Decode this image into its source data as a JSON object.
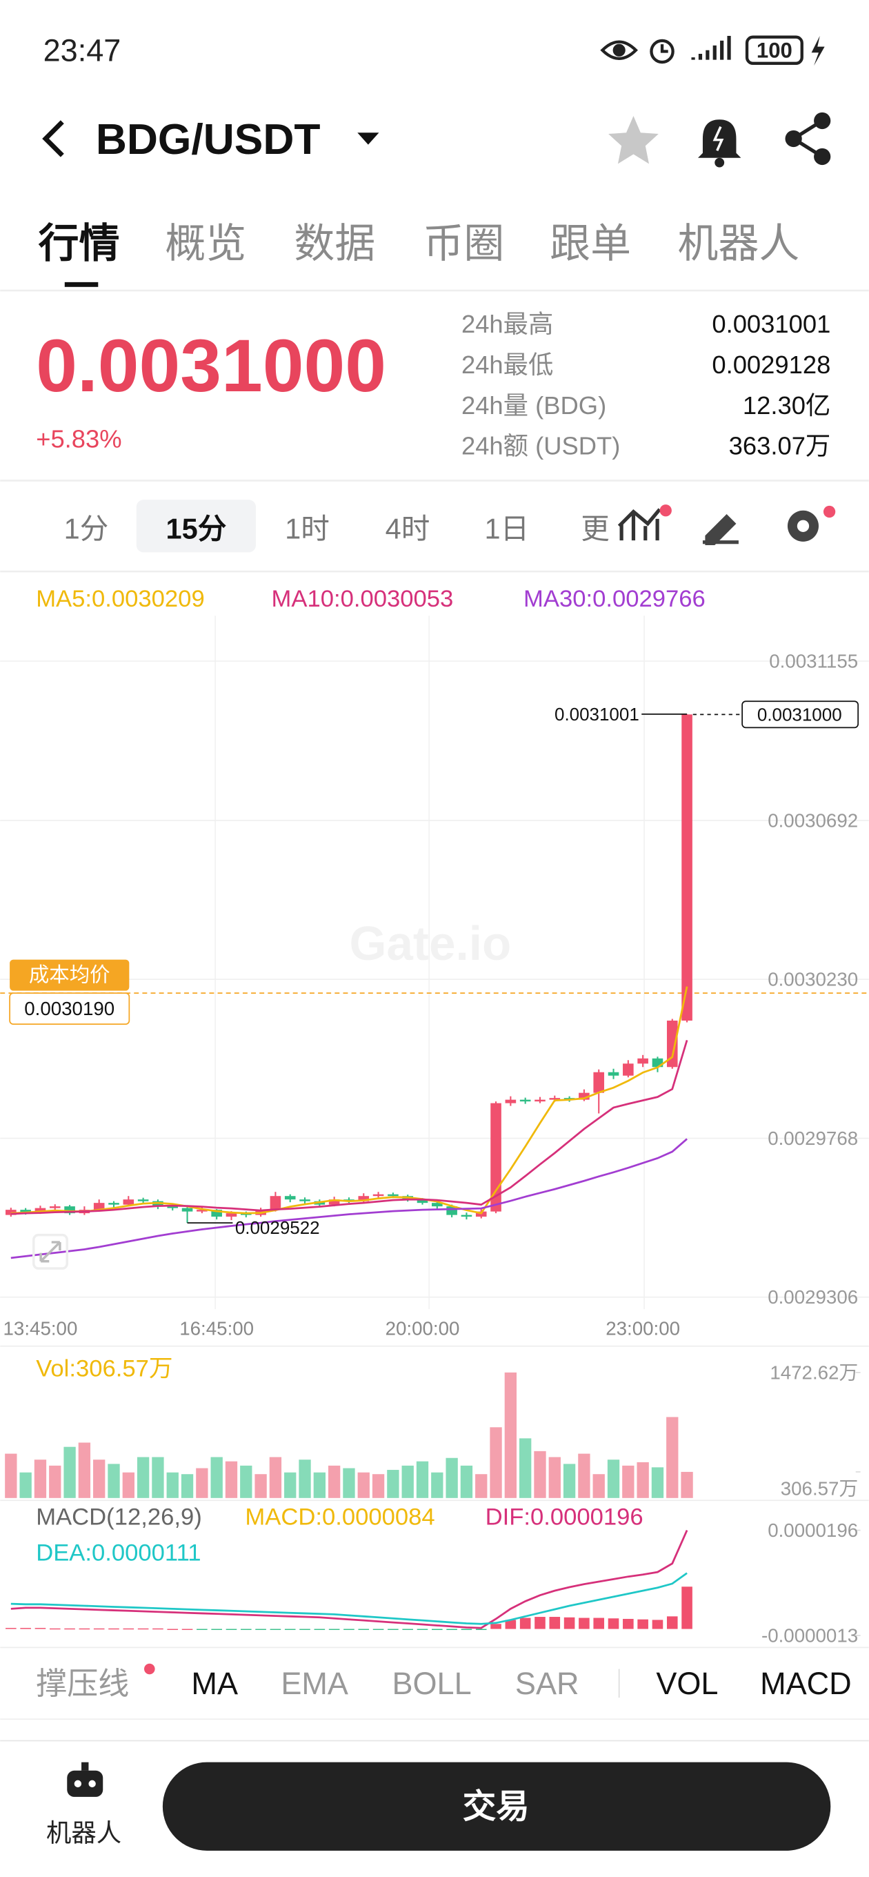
{
  "status_bar": {
    "time": "23:47",
    "battery": "100"
  },
  "header": {
    "pair": "BDG/USDT"
  },
  "tabs": [
    "行情",
    "概览",
    "数据",
    "币圈",
    "跟单",
    "机器人"
  ],
  "price": {
    "last": "0.0031000",
    "change": "+5.83%"
  },
  "stats": [
    {
      "label": "24h最高",
      "value": "0.0031001"
    },
    {
      "label": "24h最低",
      "value": "0.0029128"
    },
    {
      "label": "24h量 (BDG)",
      "value": "12.30亿"
    },
    {
      "label": "24h额 (USDT)",
      "value": "363.07万"
    }
  ],
  "intervals": [
    "1分",
    "15分",
    "1时",
    "4时",
    "1日",
    "更"
  ],
  "watermark": "Gate.io",
  "chart_data": [
    {
      "type": "candlestick",
      "up_color": "#f0506e",
      "down_color": "#2ebd85",
      "categories": [
        null,
        null,
        "13:45:00",
        null,
        null,
        null,
        null,
        null,
        null,
        null,
        null,
        null,
        null,
        null,
        "16:45:00",
        null,
        null,
        null,
        null,
        null,
        null,
        null,
        null,
        null,
        null,
        null,
        null,
        null,
        "20:00:00",
        null,
        null,
        null,
        null,
        null,
        null,
        null,
        null,
        null,
        null,
        null,
        null,
        null,
        null,
        "23:00:00",
        null,
        null,
        null
      ],
      "open": [
        0.0029545,
        0.002956,
        0.0029552,
        0.0029565,
        0.002957,
        0.002955,
        0.002956,
        0.002958,
        0.0029575,
        0.002959,
        0.0029585,
        0.002957,
        0.0029565,
        0.0029555,
        0.002956,
        0.002954,
        0.002955,
        0.0029545,
        0.002956,
        0.00296,
        0.002959,
        0.0029585,
        0.0029575,
        0.002959,
        0.0029585,
        0.00296,
        0.0029605,
        0.00296,
        0.002959,
        0.002958,
        0.002957,
        0.0029545,
        0.002954,
        0.0029555,
        0.002987,
        0.002988,
        0.0029875,
        0.002988,
        0.0029885,
        0.002988,
        0.00299,
        0.002996,
        0.002995,
        0.0029985,
        0.003,
        0.0029975,
        0.003011
      ],
      "high": [
        0.0029566,
        0.0029565,
        0.0029572,
        0.0029576,
        0.0029574,
        0.002957,
        0.002959,
        0.0029585,
        0.00296,
        0.0029595,
        0.002959,
        0.0029575,
        0.002957,
        0.0029568,
        0.0029562,
        0.0029556,
        0.0029555,
        0.0029566,
        0.0029612,
        0.0029605,
        0.0029596,
        0.002959,
        0.0029598,
        0.0029596,
        0.0029608,
        0.0029612,
        0.002961,
        0.0029604,
        0.0029594,
        0.0029585,
        0.0029575,
        0.0029552,
        0.0029562,
        0.0029875,
        0.002989,
        0.0029886,
        0.0029888,
        0.0029892,
        0.002989,
        0.002991,
        0.0029968,
        0.002997,
        0.0029995,
        0.003001,
        0.0030005,
        0.0030115,
        0.0031001
      ],
      "low": [
        0.002954,
        0.0029546,
        0.0029548,
        0.002956,
        0.0029545,
        0.0029545,
        0.0029555,
        0.0029565,
        0.002957,
        0.0029578,
        0.0029562,
        0.0029558,
        0.0029522,
        0.002955,
        0.0029532,
        0.002953,
        0.0029538,
        0.002954,
        0.0029555,
        0.0029582,
        0.0029578,
        0.0029568,
        0.002957,
        0.002958,
        0.002958,
        0.0029595,
        0.0029594,
        0.0029584,
        0.0029575,
        0.0029562,
        0.0029538,
        0.0029532,
        0.0029535,
        0.002955,
        0.0029862,
        0.0029868,
        0.002987,
        0.0029874,
        0.0029874,
        0.0029876,
        0.002984,
        0.002994,
        0.0029945,
        0.0029975,
        0.002996,
        0.002997,
        0.0030105
      ],
      "close": [
        0.002956,
        0.0029552,
        0.0029565,
        0.002957,
        0.002955,
        0.002956,
        0.002958,
        0.0029575,
        0.002959,
        0.0029585,
        0.002957,
        0.0029565,
        0.0029555,
        0.002956,
        0.002954,
        0.002955,
        0.0029545,
        0.002956,
        0.00296,
        0.002959,
        0.0029585,
        0.0029575,
        0.002959,
        0.0029585,
        0.00296,
        0.0029605,
        0.00296,
        0.002959,
        0.002958,
        0.002957,
        0.0029545,
        0.002954,
        0.0029555,
        0.002987,
        0.002988,
        0.0029875,
        0.002988,
        0.0029885,
        0.002988,
        0.00299,
        0.002996,
        0.002995,
        0.0029985,
        0.003,
        0.0029975,
        0.003011,
        0.0031
      ],
      "series": [
        {
          "name": "MA5:0.0030209",
          "color": "#f0b90b",
          "values": [
            0.002955,
            0.0029552,
            0.0029555,
            0.0029558,
            0.0029556,
            0.0029555,
            0.002956,
            0.0029565,
            0.0029572,
            0.0029578,
            0.002958,
            0.0029577,
            0.002957,
            0.0029562,
            0.0029556,
            0.0029552,
            0.002955,
            0.0029551,
            0.0029559,
            0.0029569,
            0.0029576,
            0.0029582,
            0.0029588,
            0.0029585,
            0.0029587,
            0.0029593,
            0.0029597,
            0.0029596,
            0.0029591,
            0.0029584,
            0.0029571,
            0.0029559,
            0.002955,
            0.0029616,
            0.0029678,
            0.0029744,
            0.0029812,
            0.0029878,
            0.002988,
            0.0029884,
            0.0029901,
            0.0029915,
            0.0029935,
            0.0029959,
            0.0029974,
            0.0030004,
            0.0030209
          ]
        },
        {
          "name": "MA10:0.0030053",
          "color": "#d6307a",
          "values": [
            0.0029548,
            0.002955,
            0.0029551,
            0.0029553,
            0.0029554,
            0.0029555,
            0.0029557,
            0.002956,
            0.0029564,
            0.0029568,
            0.0029571,
            0.0029572,
            0.0029571,
            0.0029569,
            0.0029566,
            0.0029564,
            0.0029561,
            0.0029558,
            0.0029561,
            0.0029563,
            0.0029566,
            0.0029569,
            0.0029573,
            0.0029577,
            0.002958,
            0.0029584,
            0.0029588,
            0.002959,
            0.002959,
            0.0029588,
            0.0029584,
            0.002958,
            0.0029575,
            0.00296,
            0.0029625,
            0.0029658,
            0.0029692,
            0.0029725,
            0.002976,
            0.0029795,
            0.0029826,
            0.0029857,
            0.0029868,
            0.0029878,
            0.0029888,
            0.0029911,
            0.0030053
          ]
        },
        {
          "name": "MA30:0.0029766",
          "color": "#a23dd1",
          "values": [
            0.002942,
            0.0029425,
            0.002943,
            0.0029435,
            0.002944,
            0.0029445,
            0.0029452,
            0.002946,
            0.0029468,
            0.0029476,
            0.0029484,
            0.0029491,
            0.0029497,
            0.0029503,
            0.0029508,
            0.0029513,
            0.0029518,
            0.0029522,
            0.0029527,
            0.0029531,
            0.0029535,
            0.0029539,
            0.0029543,
            0.0029547,
            0.002955,
            0.0029553,
            0.0029556,
            0.0029558,
            0.002956,
            0.0029561,
            0.0029562,
            0.0029563,
            0.0029564,
            0.0029575,
            0.0029586,
            0.0029598,
            0.0029609,
            0.002962,
            0.0029632,
            0.0029644,
            0.0029657,
            0.0029669,
            0.0029682,
            0.0029696,
            0.002971,
            0.0029729,
            0.0029766
          ]
        }
      ],
      "ylim": [
        0.0029306,
        0.0031155
      ],
      "yticks": [
        0.0031155,
        0.0030692,
        {
          "value": 0.003023,
          "label": "0.0030230"
        },
        0.0029768,
        0.0029306
      ],
      "grid": true,
      "cost_label": "成本均价",
      "cost_price": {
        "value": 0.003019,
        "label": "0.0030190"
      },
      "high_mark": 0.0031001,
      "low_mark": 0.0029522,
      "current_price": {
        "value": 0.0031,
        "label": "0.0031000"
      }
    },
    {
      "type": "bar",
      "title": "Vol:306.57万",
      "values": [
        520,
        300,
        450,
        380,
        600,
        650,
        450,
        400,
        300,
        480,
        480,
        300,
        280,
        350,
        480,
        430,
        380,
        280,
        480,
        300,
        450,
        300,
        380,
        350,
        300,
        280,
        330,
        380,
        430,
        300,
        470,
        380,
        280,
        830,
        1472.62,
        700,
        550,
        480,
        400,
        520,
        280,
        450,
        380,
        420,
        360,
        950,
        306.57
      ],
      "ylim": [
        0,
        1472.62
      ],
      "yticks": [
        {
          "value": 1472.62,
          "label": "1472.62万"
        },
        {
          "value": 306.57,
          "label": "306.57万"
        }
      ]
    },
    {
      "type": "macd",
      "title": "MACD(12,26,9)",
      "series": [
        {
          "name": "MACD:0.0000084",
          "color": "#f0b90b",
          "values": [
            2e-07,
            2e-07,
            2e-07,
            1e-07,
            1e-07,
            1e-07,
            1e-07,
            1e-07,
            1e-07,
            1e-07,
            1e-07,
            0,
            0,
            -1e-07,
            -1e-07,
            -1e-07,
            -1e-07,
            -1e-07,
            -1e-07,
            -1e-07,
            -1e-07,
            -1e-07,
            -1e-07,
            -1e-07,
            -1e-07,
            -1e-07,
            -1e-07,
            -1e-07,
            -1e-07,
            -2e-07,
            -2e-07,
            -2e-07,
            -2e-07,
            1e-06,
            1.8e-06,
            2.2e-06,
            2.4e-06,
            2.4e-06,
            2.3e-06,
            2.2e-06,
            2.2e-06,
            2.1e-06,
            2e-06,
            1.9e-06,
            1.8e-06,
            2.5e-06,
            8.4e-06
          ]
        },
        {
          "name": "DIF:0.0000196",
          "color": "#d6307a",
          "values": [
            4e-06,
            4.2e-06,
            4.2e-06,
            4.1e-06,
            4e-06,
            3.9e-06,
            3.8e-06,
            3.7e-06,
            3.6e-06,
            3.5e-06,
            3.4e-06,
            3.3e-06,
            3.2e-06,
            3.1e-06,
            3e-06,
            2.9e-06,
            2.8e-06,
            2.7e-06,
            2.6e-06,
            2.5e-06,
            2.4e-06,
            2.3e-06,
            2.1e-06,
            1.9e-06,
            1.7e-06,
            1.5e-06,
            1.3e-06,
            1.1e-06,
            9e-07,
            7e-07,
            5e-07,
            3e-07,
            2e-07,
            2e-06,
            4e-06,
            5.5e-06,
            6.7e-06,
            7.6e-06,
            8.3e-06,
            8.9e-06,
            9.4e-06,
            9.9e-06,
            1.04e-05,
            1.08e-05,
            1.13e-05,
            1.3e-05,
            1.96e-05
          ]
        },
        {
          "name": "DEA:0.0000111",
          "color": "#1fc7c7",
          "values": [
            5e-06,
            4.9e-06,
            4.9e-06,
            4.8e-06,
            4.7e-06,
            4.6e-06,
            4.5e-06,
            4.4e-06,
            4.3e-06,
            4.2e-06,
            4.1e-06,
            4e-06,
            3.9e-06,
            3.8e-06,
            3.7e-06,
            3.6e-06,
            3.5e-06,
            3.4e-06,
            3.3e-06,
            3.2e-06,
            3.1e-06,
            3e-06,
            2.9e-06,
            2.7e-06,
            2.5e-06,
            2.3e-06,
            2.1e-06,
            1.9e-06,
            1.7e-06,
            1.5e-06,
            1.3e-06,
            1.1e-06,
            1e-06,
            1.2e-06,
            1.8e-06,
            2.5e-06,
            3.2e-06,
            3.9e-06,
            4.6e-06,
            5.2e-06,
            5.8e-06,
            6.4e-06,
            7e-06,
            7.6e-06,
            8.2e-06,
            9e-06,
            1.11e-05
          ]
        }
      ],
      "ylim": [
        -1.3e-06,
        1.96e-05
      ],
      "yticks": [
        1.96e-05,
        -1.3e-06
      ]
    }
  ],
  "indicators": [
    "撑压线",
    "MA",
    "EMA",
    "BOLL",
    "SAR",
    "VOL",
    "MACD"
  ],
  "bottom": {
    "robot": "机器人",
    "trade": "交易"
  }
}
